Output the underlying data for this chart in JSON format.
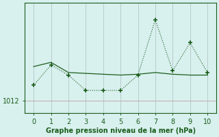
{
  "line1_x": [
    0,
    1,
    2,
    3,
    4,
    5,
    6,
    7,
    8,
    9,
    10
  ],
  "line1_y": [
    1013.8,
    1016.2,
    1015.0,
    1013.2,
    1013.2,
    1013.2,
    1015.0,
    1021.5,
    1015.5,
    1018.8,
    1015.3
  ],
  "line2_x": [
    0,
    1,
    2,
    3,
    4,
    5,
    6,
    7,
    8,
    9,
    10
  ],
  "line2_y": [
    1016.0,
    1016.5,
    1015.3,
    1015.2,
    1015.1,
    1015.0,
    1015.1,
    1015.3,
    1015.1,
    1015.0,
    1015.0
  ],
  "line_color": "#1a5c1a",
  "bg_color": "#d8f0ee",
  "grid_color_v": "#b8cccc",
  "grid_color_h": "#c8aaaa",
  "xlabel": "Graphe pression niveau de la mer (hPa)",
  "xlim": [
    -0.5,
    10.5
  ],
  "ylim": [
    1010.5,
    1023.5
  ],
  "ytick_val": 1012,
  "xticks": [
    0,
    1,
    2,
    3,
    4,
    5,
    6,
    7,
    8,
    9,
    10
  ]
}
